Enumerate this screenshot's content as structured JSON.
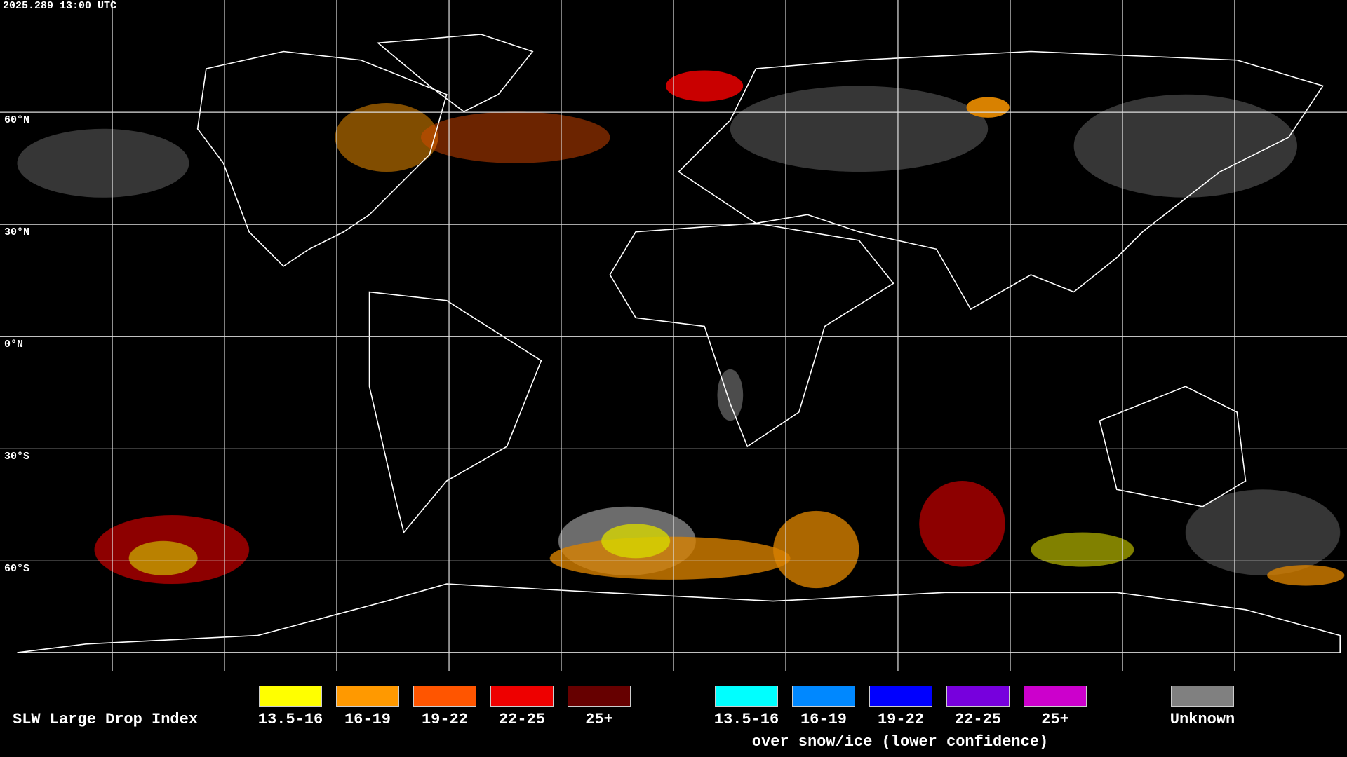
{
  "header": {
    "timestamp": "2025.289 13:00 UTC"
  },
  "map": {
    "latitude_labels": [
      "60°N",
      "30°N",
      "0°N",
      "30°S",
      "60°S"
    ]
  },
  "legend": {
    "title": "SLW Large Drop Index",
    "liquid": [
      {
        "label": "13.5-16",
        "color": "#ffff00"
      },
      {
        "label": "16-19",
        "color": "#ff9900"
      },
      {
        "label": "19-22",
        "color": "#ff5500"
      },
      {
        "label": "22-25",
        "color": "#ee0000"
      },
      {
        "label": "25+",
        "color": "#660000"
      }
    ],
    "snow_ice": {
      "entries": [
        {
          "label": "13.5-16",
          "color": "#00ffff"
        },
        {
          "label": "16-19",
          "color": "#0088ff"
        },
        {
          "label": "19-22",
          "color": "#0000ff"
        },
        {
          "label": "22-25",
          "color": "#7700dd"
        },
        {
          "label": "25+",
          "color": "#cc00cc"
        }
      ],
      "caption": "over snow/ice (lower confidence)"
    },
    "unknown": {
      "label": "Unknown",
      "color": "#808080"
    }
  }
}
